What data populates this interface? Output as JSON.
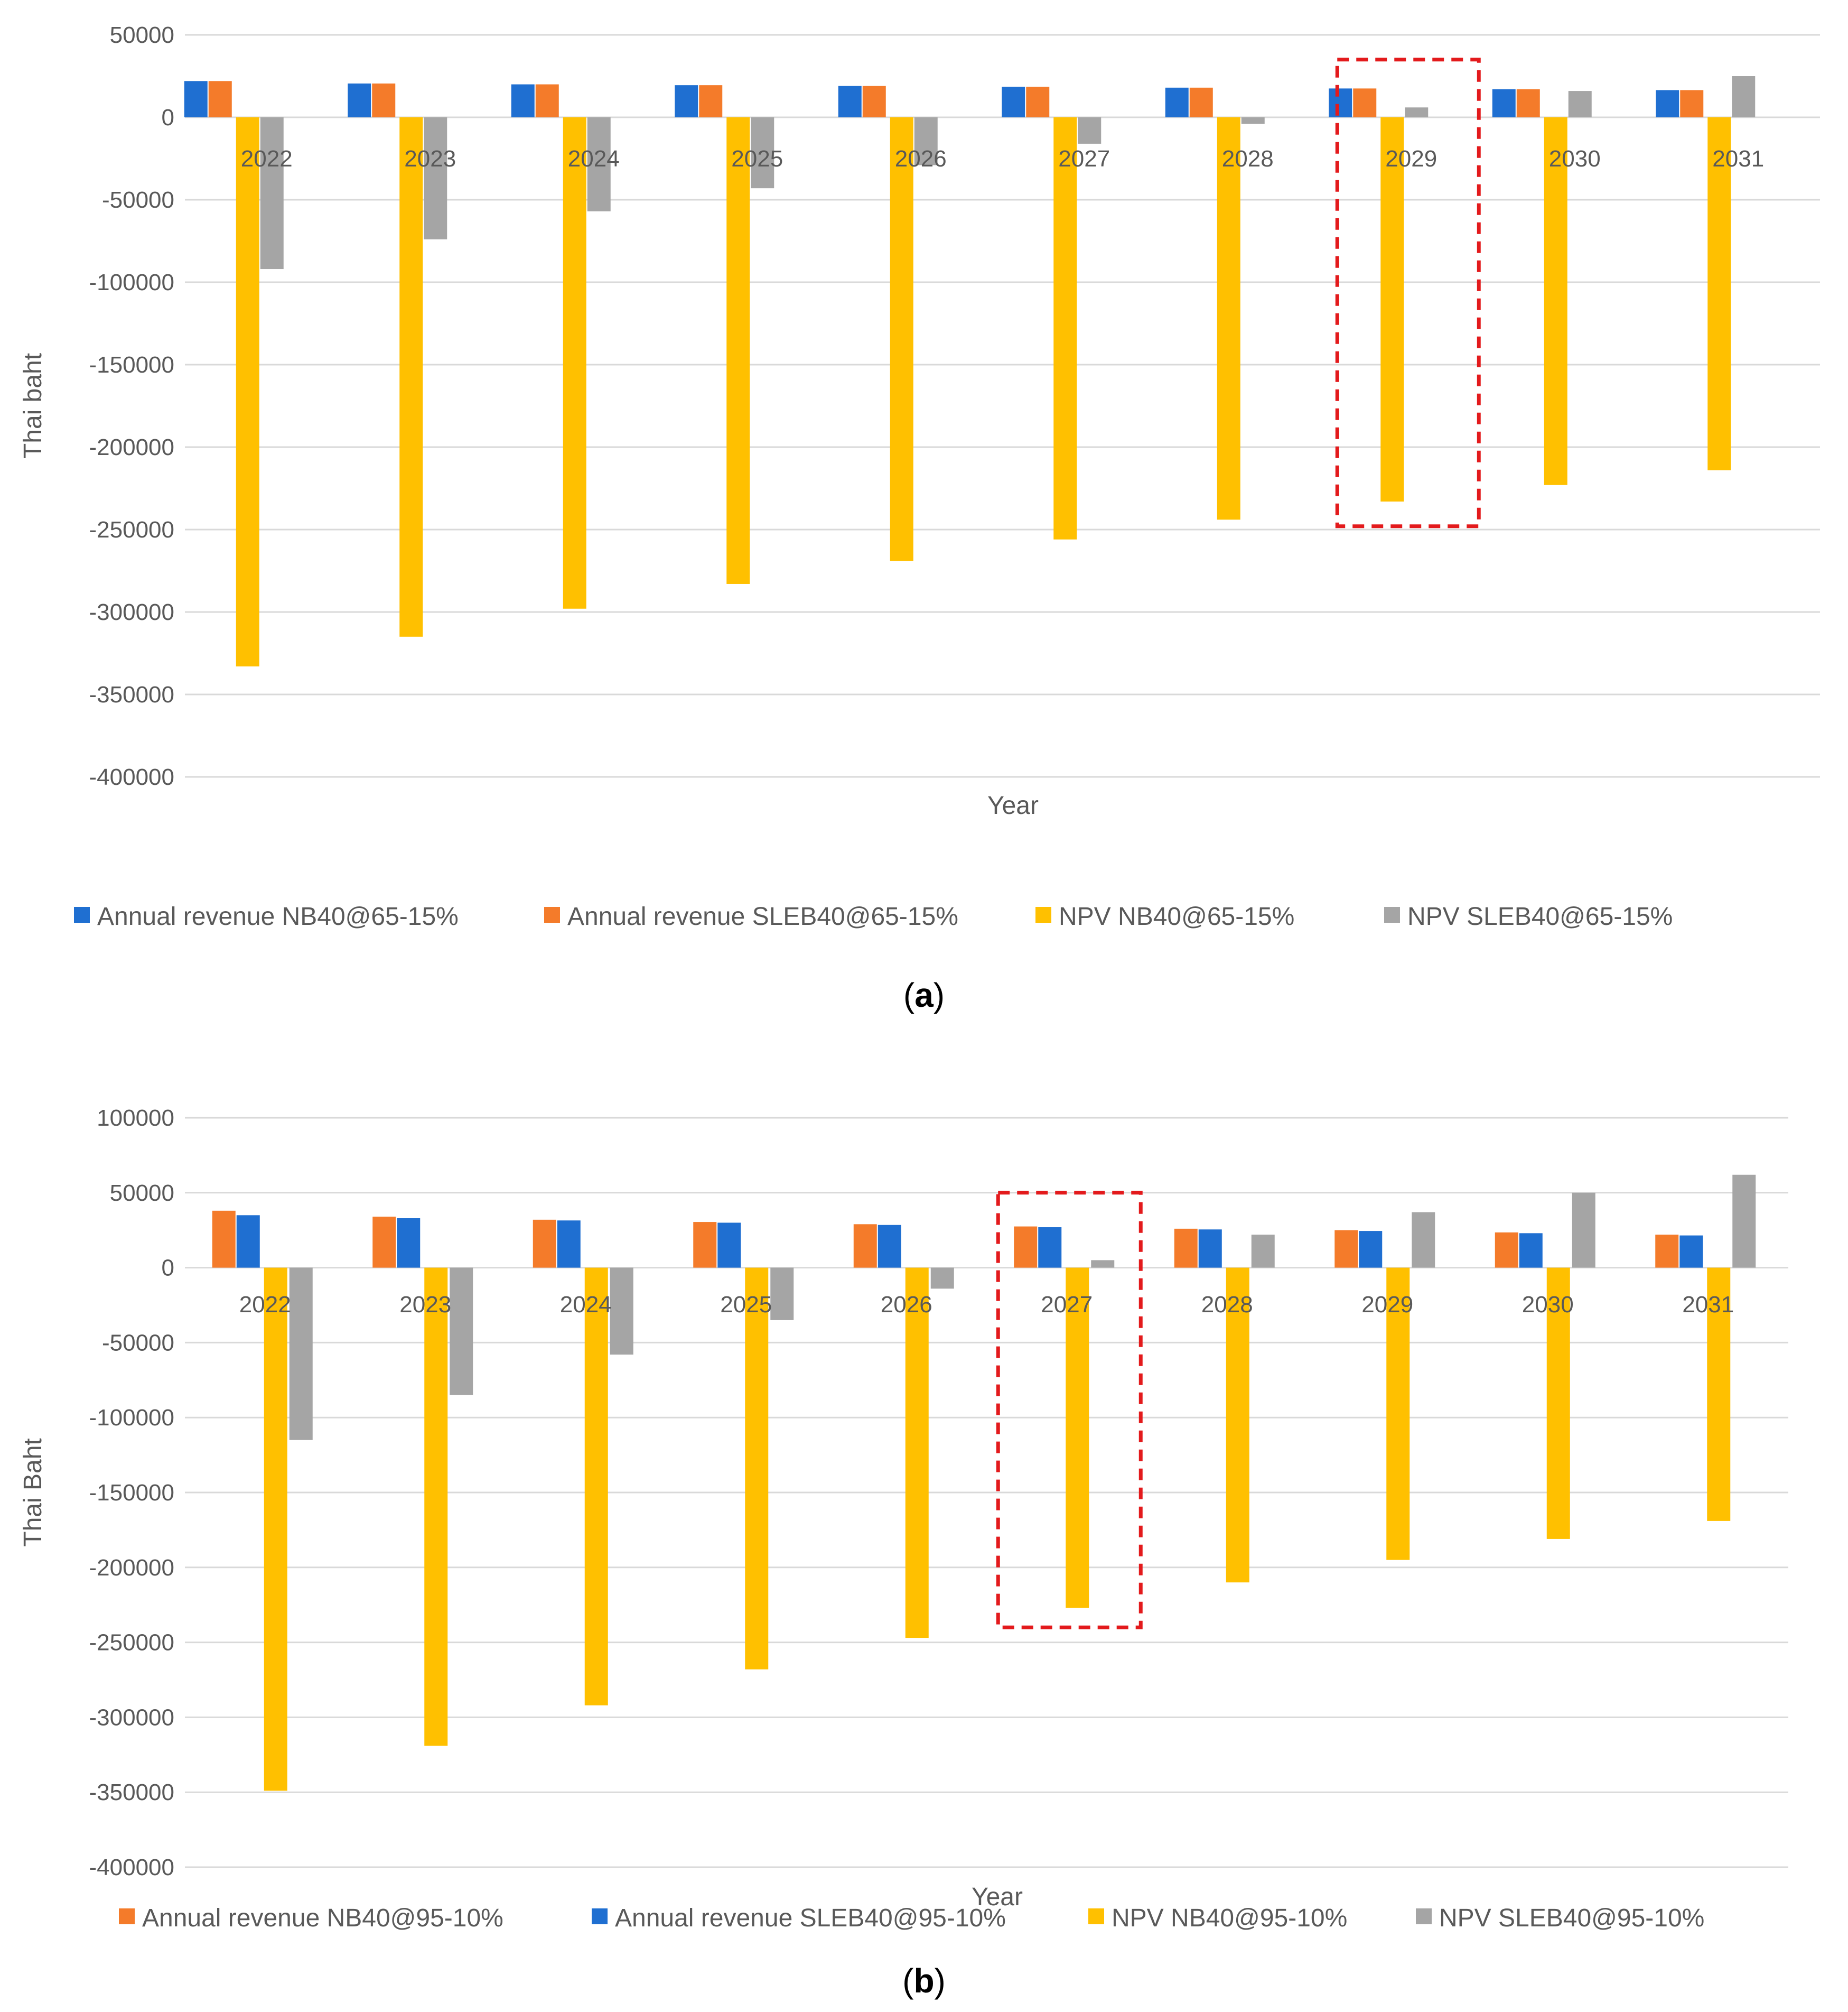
{
  "chart_data": [
    {
      "type": "bar",
      "panel_label": "a",
      "caption_open": "(",
      "caption_close": ")",
      "categories": [
        "2022",
        "2023",
        "2024",
        "2025",
        "2026",
        "2027",
        "2028",
        "2029",
        "2030",
        "2031"
      ],
      "series": [
        {
          "name": "Annual revenue NB40@65-15%",
          "color": "#1f6fd1",
          "values": [
            22000,
            20500,
            20000,
            19500,
            19000,
            18500,
            18000,
            17500,
            17000,
            16500
          ]
        },
        {
          "name": "Annual revenue SLEB40@65-15%",
          "color": "#f47b2a",
          "values": [
            22000,
            20500,
            20000,
            19500,
            19000,
            18500,
            18000,
            17500,
            17000,
            16500
          ]
        },
        {
          "name": "NPV NB40@65-15%",
          "color": "#ffc000",
          "values": [
            -333000,
            -315000,
            -298000,
            -283000,
            -269000,
            -256000,
            -244000,
            -233000,
            -223000,
            -214000
          ]
        },
        {
          "name": "NPV SLEB40@65-15%",
          "color": "#a5a5a5",
          "values": [
            -92000,
            -74000,
            -57000,
            -43000,
            -29000,
            -16000,
            -4000,
            6000,
            16000,
            25000
          ]
        }
      ],
      "ylim": [
        -400000,
        50000
      ],
      "yticks": [
        50000,
        0,
        -50000,
        -100000,
        -150000,
        -200000,
        -250000,
        -300000,
        -350000,
        -400000
      ],
      "ylabel": "Thai baht",
      "xlabel": "Year",
      "legend": "bottom",
      "highlight_category": "2029",
      "highlight_color": "#e31a1c"
    },
    {
      "type": "bar",
      "panel_label": "b",
      "caption_open": "(",
      "caption_close": ")",
      "categories": [
        "2022",
        "2023",
        "2024",
        "2025",
        "2026",
        "2027",
        "2028",
        "2029",
        "2030",
        "2031"
      ],
      "series": [
        {
          "name": "Annual revenue NB40@95-10%",
          "color": "#f47b2a",
          "values": [
            38000,
            34000,
            32000,
            30500,
            29000,
            27500,
            26000,
            25000,
            23500,
            22000
          ]
        },
        {
          "name": "Annual revenue SLEB40@95-10%",
          "color": "#1f6fd1",
          "values": [
            35000,
            33000,
            31500,
            30000,
            28500,
            27000,
            25500,
            24500,
            23000,
            21500
          ]
        },
        {
          "name": "NPV NB40@95-10%",
          "color": "#ffc000",
          "values": [
            -349000,
            -319000,
            -292000,
            -268000,
            -247000,
            -227000,
            -210000,
            -195000,
            -181000,
            -169000
          ]
        },
        {
          "name": "NPV SLEB40@95-10%",
          "color": "#a5a5a5",
          "values": [
            -115000,
            -85000,
            -58000,
            -35000,
            -14000,
            5000,
            22000,
            37000,
            50000,
            62000
          ]
        }
      ],
      "ylim": [
        -400000,
        100000
      ],
      "yticks": [
        100000,
        50000,
        0,
        -50000,
        -100000,
        -150000,
        -200000,
        -250000,
        -300000,
        -350000,
        -400000
      ],
      "ylabel": "Thai Baht",
      "xlabel": "Year",
      "legend": "bottom",
      "highlight_category": "2027",
      "highlight_color": "#e31a1c"
    }
  ]
}
